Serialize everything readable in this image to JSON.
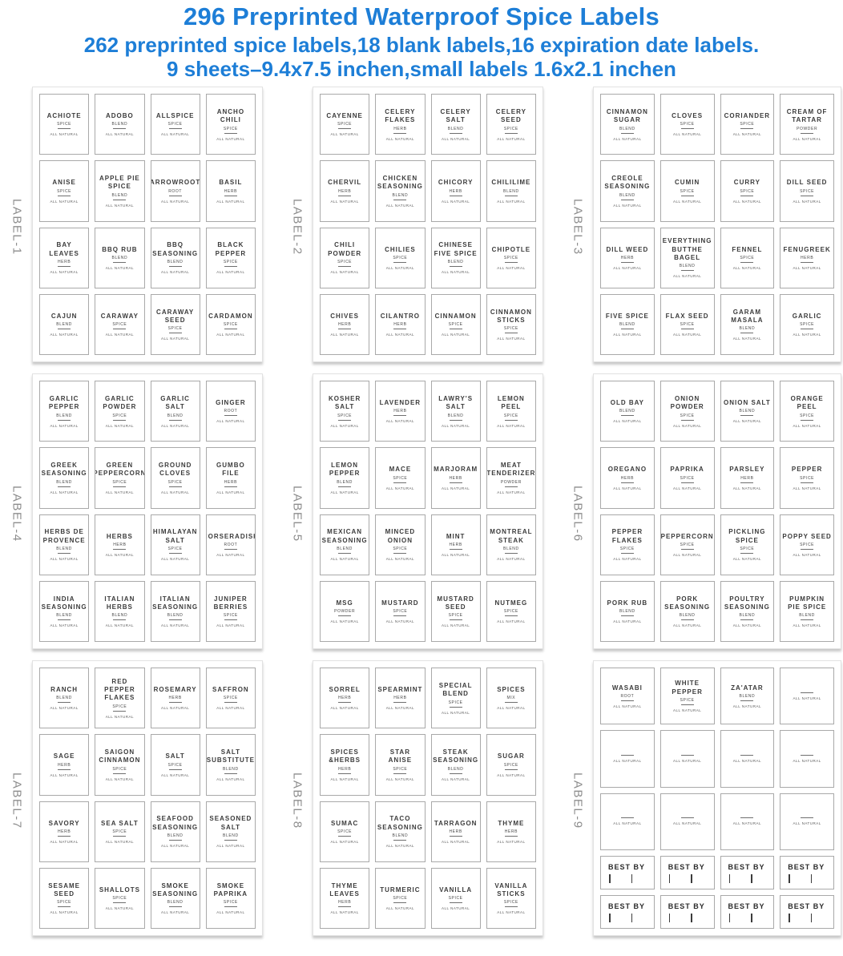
{
  "header": {
    "title": "296 Preprinted Waterproof Spice Labels",
    "subtitle1": "262 preprinted spice labels,18 blank labels,16 expiration date labels.",
    "subtitle2": "9 sheets–9.4x7.5 inchen,small labels 1.6x2.1 inchen",
    "accent_color": "#1d7ed7"
  },
  "strings": {
    "all_natural": "ALL NATURAL",
    "best_by": "BEST BY"
  },
  "sheets": [
    {
      "name": "LABEL-1",
      "labels": [
        {
          "name": "ACHIOTE",
          "type": "SPICE"
        },
        {
          "name": "ADOBO",
          "type": "BLEND"
        },
        {
          "name": "ALLSPICE",
          "type": "SPICE"
        },
        {
          "name": "ANCHO CHILI",
          "type": "SPICE"
        },
        {
          "name": "ANISE",
          "type": "SPICE"
        },
        {
          "name": "APPLE PIE SPICE",
          "type": "BLEND"
        },
        {
          "name": "ARROWROOT",
          "type": "ROOT"
        },
        {
          "name": "BASIL",
          "type": "HERB"
        },
        {
          "name": "BAY LEAVES",
          "type": "HERB"
        },
        {
          "name": "BBQ RUB",
          "type": "BLEND"
        },
        {
          "name": "BBQ SEASONING",
          "type": "BLEND"
        },
        {
          "name": "BLACK PEPPER",
          "type": "SPICE"
        },
        {
          "name": "CAJUN",
          "type": "BLEND"
        },
        {
          "name": "CARAWAY",
          "type": "SPICE"
        },
        {
          "name": "CARAWAY SEED",
          "type": "SPICE"
        },
        {
          "name": "CARDAMON",
          "type": "SPICE"
        }
      ]
    },
    {
      "name": "LABEL-2",
      "labels": [
        {
          "name": "CAYENNE",
          "type": "SPICE"
        },
        {
          "name": "CELERY FLAKES",
          "type": "HERB"
        },
        {
          "name": "CELERY SALT",
          "type": "BLEND"
        },
        {
          "name": "CELERY SEED",
          "type": "SPICE"
        },
        {
          "name": "CHERVIL",
          "type": "HERB"
        },
        {
          "name": "CHICKEN SEASONING",
          "type": "BLEND"
        },
        {
          "name": "CHICORY",
          "type": "HERB"
        },
        {
          "name": "CHILILIME",
          "type": "BLEND"
        },
        {
          "name": "CHILI POWDER",
          "type": "SPICE"
        },
        {
          "name": "CHILIES",
          "type": "SPICE"
        },
        {
          "name": "CHINESE FIVE SPICE",
          "type": "BLEND"
        },
        {
          "name": "CHIPOTLE",
          "type": "SPICE"
        },
        {
          "name": "CHIVES",
          "type": "HERB"
        },
        {
          "name": "CILANTRO",
          "type": "HERB"
        },
        {
          "name": "CINNAMON",
          "type": "SPICE"
        },
        {
          "name": "CINNAMON STICKS",
          "type": "SPICE"
        }
      ]
    },
    {
      "name": "LABEL-3",
      "labels": [
        {
          "name": "CINNAMON SUGAR",
          "type": "BLEND"
        },
        {
          "name": "CLOVES",
          "type": "SPICE"
        },
        {
          "name": "CORIANDER",
          "type": "SPICE"
        },
        {
          "name": "CREAM OF TARTAR",
          "type": "POWDER"
        },
        {
          "name": "CREOLE SEASONING",
          "type": "BLEND"
        },
        {
          "name": "CUMIN",
          "type": "SPICE"
        },
        {
          "name": "CURRY",
          "type": "SPICE"
        },
        {
          "name": "DILL SEED",
          "type": "SPICE"
        },
        {
          "name": "DILL WEED",
          "type": "HERB"
        },
        {
          "name": "EVERYTHING BUTTHE BAGEL",
          "type": "BLEND"
        },
        {
          "name": "FENNEL",
          "type": "SPICE"
        },
        {
          "name": "FENUGREEK",
          "type": "HERB"
        },
        {
          "name": "FIVE SPICE",
          "type": "BLEND"
        },
        {
          "name": "FLAX SEED",
          "type": "SPICE"
        },
        {
          "name": "GARAM MASALA",
          "type": "BLEND"
        },
        {
          "name": "GARLIC",
          "type": "SPICE"
        }
      ]
    },
    {
      "name": "LABEL-4",
      "labels": [
        {
          "name": "GARLIC PEPPER",
          "type": "BLEND"
        },
        {
          "name": "GARLIC POWDER",
          "type": "SPICE"
        },
        {
          "name": "GARLIC SALT",
          "type": "BLEND"
        },
        {
          "name": "GINGER",
          "type": "ROOT"
        },
        {
          "name": "GREEK SEASONING",
          "type": "BLEND"
        },
        {
          "name": "GREEN PEPPERCORN",
          "type": "SPICE"
        },
        {
          "name": "GROUND CLOVES",
          "type": "SPICE"
        },
        {
          "name": "GUMBO FILE",
          "type": "HERB"
        },
        {
          "name": "HERBS DE PROVENCE",
          "type": "BLEND"
        },
        {
          "name": "HERBS",
          "type": "HERB"
        },
        {
          "name": "HIMALAYAN SALT",
          "type": "SPICE"
        },
        {
          "name": "HORSERADISH",
          "type": "ROOT"
        },
        {
          "name": "INDIA SEASONING",
          "type": "BLEND"
        },
        {
          "name": "ITALIAN HERBS",
          "type": "BLEND"
        },
        {
          "name": "ITALIAN SEASONING",
          "type": "BLEND"
        },
        {
          "name": "JUNIPER BERRIES",
          "type": "SPICE"
        }
      ]
    },
    {
      "name": "LABEL-5",
      "labels": [
        {
          "name": "KOSHER SALT",
          "type": "SPICE"
        },
        {
          "name": "LAVENDER",
          "type": "HERB"
        },
        {
          "name": "LAWRY'S SALT",
          "type": "BLEND"
        },
        {
          "name": "LEMON PEEL",
          "type": "SPICE"
        },
        {
          "name": "LEMON PEPPER",
          "type": "BLEND"
        },
        {
          "name": "MACE",
          "type": "SPICE"
        },
        {
          "name": "MARJORAM",
          "type": "HERB"
        },
        {
          "name": "MEAT TENDERIZER",
          "type": "POWDER"
        },
        {
          "name": "MEXICAN SEASONING",
          "type": "BLEND"
        },
        {
          "name": "MINCED ONION",
          "type": "SPICE"
        },
        {
          "name": "MINT",
          "type": "HERB"
        },
        {
          "name": "MONTREAL STEAK",
          "type": "BLEND"
        },
        {
          "name": "MSG",
          "type": "POWDER"
        },
        {
          "name": "MUSTARD",
          "type": "SPICE"
        },
        {
          "name": "MUSTARD SEED",
          "type": "SPICE"
        },
        {
          "name": "NUTMEG",
          "type": "SPICE"
        }
      ]
    },
    {
      "name": "LABEL-6",
      "labels": [
        {
          "name": "OLD BAY",
          "type": "BLEND"
        },
        {
          "name": "ONION POWDER",
          "type": "SPICE"
        },
        {
          "name": "ONION SALT",
          "type": "BLEND"
        },
        {
          "name": "ORANGE PEEL",
          "type": "SPICE"
        },
        {
          "name": "OREGANO",
          "type": "HERB"
        },
        {
          "name": "PAPRIKA",
          "type": "SPICE"
        },
        {
          "name": "PARSLEY",
          "type": "HERB"
        },
        {
          "name": "PEPPER",
          "type": "SPICE"
        },
        {
          "name": "PEPPER FLAKES",
          "type": "SPICE"
        },
        {
          "name": "PEPPERCORN",
          "type": "SPICE"
        },
        {
          "name": "PICKLING SPICE",
          "type": "SPICE"
        },
        {
          "name": "POPPY SEED",
          "type": "SPICE"
        },
        {
          "name": "PORK RUB",
          "type": "BLEND"
        },
        {
          "name": "PORK SEASONING",
          "type": "BLEND"
        },
        {
          "name": "POULTRY SEASONING",
          "type": "BLEND"
        },
        {
          "name": "PUMPKIN PIE SPICE",
          "type": "BLEND"
        }
      ]
    },
    {
      "name": "LABEL-7",
      "labels": [
        {
          "name": "RANCH",
          "type": "BLEND"
        },
        {
          "name": "RED PEPPER FLAKES",
          "type": "SPICE"
        },
        {
          "name": "ROSEMARY",
          "type": "HERB"
        },
        {
          "name": "SAFFRON",
          "type": "SPICE"
        },
        {
          "name": "SAGE",
          "type": "HERB"
        },
        {
          "name": "SAIGON CINNAMON",
          "type": "SPICE"
        },
        {
          "name": "SALT",
          "type": "SPICE"
        },
        {
          "name": "SALT SUBSTITUTE",
          "type": "BLEND"
        },
        {
          "name": "SAVORY",
          "type": "HERB"
        },
        {
          "name": "SEA SALT",
          "type": "SPICE"
        },
        {
          "name": "SEAFOOD SEASONING",
          "type": "BLEND"
        },
        {
          "name": "SEASONED SALT",
          "type": "BLEND"
        },
        {
          "name": "SESAME SEED",
          "type": "SPICE"
        },
        {
          "name": "SHALLOTS",
          "type": "SPICE"
        },
        {
          "name": "SMOKE SEASONING",
          "type": "BLEND"
        },
        {
          "name": "SMOKE PAPRIKA",
          "type": "SPICE"
        }
      ]
    },
    {
      "name": "LABEL-8",
      "labels": [
        {
          "name": "SORREL",
          "type": "HERB"
        },
        {
          "name": "SPEARMINT",
          "type": "HERB"
        },
        {
          "name": "SPECIAL BLEND",
          "type": "SPICE"
        },
        {
          "name": "SPICES",
          "type": "MIX"
        },
        {
          "name": "SPICES &HERBS",
          "type": "HERB"
        },
        {
          "name": "STAR ANISE",
          "type": "SPICE"
        },
        {
          "name": "STEAK SEASONING",
          "type": "BLEND"
        },
        {
          "name": "SUGAR",
          "type": "SPICE"
        },
        {
          "name": "SUMAC",
          "type": "SPICE"
        },
        {
          "name": "TACO SEASONING",
          "type": "BLEND"
        },
        {
          "name": "TARRAGON",
          "type": "HERB"
        },
        {
          "name": "THYME",
          "type": "HERB"
        },
        {
          "name": "THYME LEAVES",
          "type": "HERB"
        },
        {
          "name": "TURMERIC",
          "type": "SPICE"
        },
        {
          "name": "VANILLA",
          "type": "SPICE"
        },
        {
          "name": "VANILLA STICKS",
          "type": "SPICE"
        }
      ]
    },
    {
      "name": "LABEL-9",
      "mixed": true,
      "labels": [
        {
          "name": "WASABI",
          "type": "ROOT"
        },
        {
          "name": "WHITE PEPPER",
          "type": "SPICE"
        },
        {
          "name": "ZA'ATAR",
          "type": "BLEND"
        },
        {
          "kind": "blank"
        },
        {
          "kind": "blank"
        },
        {
          "kind": "blank"
        },
        {
          "kind": "blank"
        },
        {
          "kind": "blank"
        },
        {
          "kind": "blank"
        },
        {
          "kind": "blank"
        },
        {
          "kind": "blank"
        },
        {
          "kind": "blank"
        },
        {
          "kind": "bestby"
        },
        {
          "kind": "bestby"
        },
        {
          "kind": "bestby"
        },
        {
          "kind": "bestby"
        },
        {
          "kind": "bestby"
        },
        {
          "kind": "bestby"
        },
        {
          "kind": "bestby"
        },
        {
          "kind": "bestby"
        }
      ]
    }
  ]
}
